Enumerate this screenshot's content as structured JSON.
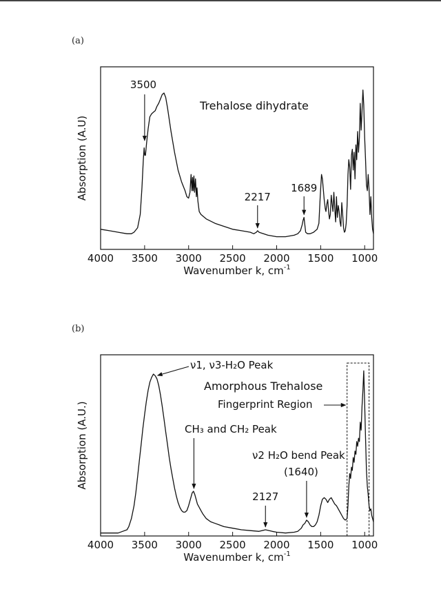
{
  "panels": [
    {
      "label": "(a)",
      "chart_data": {
        "type": "line",
        "title": "",
        "xlabel": "Wavenumber k, cm",
        "xlabel_sup": "-1",
        "ylabel": "Absorption (A.U)",
        "xlim": [
          4000,
          900
        ],
        "xreversed": true,
        "ylim": [
          0,
          1
        ],
        "xticks": [
          4000,
          3500,
          3000,
          2500,
          2000,
          1500,
          1000
        ],
        "series": [
          {
            "x": [
              4000,
              3900,
              3800,
              3700,
              3650,
              3620,
              3580,
              3550,
              3530,
              3515,
              3505,
              3498,
              3490,
              3478,
              3460,
              3440,
              3420,
              3400,
              3380,
              3360,
              3340,
              3320,
              3300,
              3280,
              3260,
              3240,
              3200,
              3160,
              3120,
              3080,
              3040,
              3020,
              3000,
              2985,
              2972,
              2962,
              2955,
              2948,
              2940,
              2932,
              2922,
              2912,
              2905,
              2895,
              2880,
              2860,
              2800,
              2700,
              2600,
              2500,
              2400,
              2300,
              2260,
              2230,
              2217,
              2200,
              2150,
              2100,
              2000,
              1900,
              1800,
              1760,
              1730,
              1710,
              1700,
              1689,
              1680,
              1670,
              1650,
              1620,
              1580,
              1540,
              1520,
              1505,
              1490,
              1480,
              1470,
              1460,
              1448,
              1440,
              1430,
              1420,
              1410,
              1400,
              1390,
              1380,
              1370,
              1360,
              1350,
              1340,
              1330,
              1320,
              1310,
              1300,
              1290,
              1280,
              1270,
              1260,
              1250,
              1240,
              1230,
              1220,
              1210,
              1200,
              1190,
              1180,
              1170,
              1160,
              1150,
              1140,
              1130,
              1120,
              1110,
              1100,
              1090,
              1080,
              1070,
              1060,
              1050,
              1040,
              1030,
              1020,
              1010,
              1000,
              990,
              980,
              970,
              960,
              950,
              940,
              930,
              920,
              910,
              900
            ],
            "y": [
              0.08,
              0.07,
              0.06,
              0.05,
              0.05,
              0.06,
              0.09,
              0.18,
              0.36,
              0.55,
              0.63,
              0.58,
              0.58,
              0.66,
              0.76,
              0.84,
              0.86,
              0.87,
              0.88,
              0.91,
              0.93,
              0.96,
              0.99,
              1.0,
              0.97,
              0.9,
              0.74,
              0.6,
              0.48,
              0.4,
              0.34,
              0.3,
              0.29,
              0.33,
              0.45,
              0.34,
              0.43,
              0.34,
              0.44,
              0.33,
              0.42,
              0.3,
              0.36,
              0.27,
              0.2,
              0.18,
              0.15,
              0.12,
              0.1,
              0.08,
              0.07,
              0.06,
              0.05,
              0.06,
              0.07,
              0.06,
              0.05,
              0.04,
              0.03,
              0.03,
              0.04,
              0.05,
              0.07,
              0.11,
              0.14,
              0.16,
              0.11,
              0.06,
              0.05,
              0.05,
              0.06,
              0.08,
              0.12,
              0.3,
              0.45,
              0.42,
              0.35,
              0.28,
              0.22,
              0.2,
              0.25,
              0.28,
              0.2,
              0.15,
              0.18,
              0.31,
              0.25,
              0.2,
              0.33,
              0.22,
              0.13,
              0.3,
              0.16,
              0.24,
              0.2,
              0.13,
              0.1,
              0.26,
              0.18,
              0.09,
              0.06,
              0.07,
              0.12,
              0.24,
              0.45,
              0.55,
              0.5,
              0.35,
              0.58,
              0.62,
              0.48,
              0.6,
              0.42,
              0.65,
              0.55,
              0.74,
              0.6,
              0.7,
              0.93,
              0.75,
              0.88,
              1.02,
              0.92,
              0.7,
              0.55,
              0.38,
              0.34,
              0.45,
              0.35,
              0.18,
              0.3,
              0.16,
              0.08,
              0.05
            ]
          }
        ],
        "annotations": [
          {
            "text": "3500",
            "x": 3500,
            "y": 0.66
          },
          {
            "text": "2217",
            "x": 2217,
            "y": 0.07
          },
          {
            "text": "1689",
            "x": 1689,
            "y": 0.16
          }
        ],
        "inner_label": "Trehalose dihydrate"
      }
    },
    {
      "label": "(b)",
      "chart_data": {
        "type": "line",
        "title": "",
        "xlabel": "Wavenumber k, cm",
        "xlabel_sup": "-1",
        "ylabel": "Absorption (A.U.)",
        "xlim": [
          4000,
          900
        ],
        "xreversed": true,
        "ylim": [
          0,
          1
        ],
        "xticks": [
          4000,
          3500,
          3000,
          2500,
          2000,
          1500,
          1000
        ],
        "series": [
          {
            "x": [
              4000,
              3900,
              3800,
              3750,
              3700,
              3680,
              3650,
              3620,
              3600,
              3580,
              3560,
              3540,
              3520,
              3500,
              3480,
              3460,
              3440,
              3420,
              3400,
              3380,
              3360,
              3340,
              3320,
              3300,
              3280,
              3260,
              3240,
              3220,
              3200,
              3180,
              3160,
              3140,
              3120,
              3100,
              3080,
              3060,
              3040,
              3020,
              3000,
              2980,
              2960,
              2945,
              2930,
              2915,
              2900,
              2880,
              2860,
              2840,
              2800,
              2750,
              2700,
              2650,
              2600,
              2500,
              2400,
              2300,
              2200,
              2127,
              2050,
              2000,
              1900,
              1800,
              1760,
              1720,
              1700,
              1680,
              1660,
              1640,
              1620,
              1600,
              1580,
              1560,
              1540,
              1520,
              1500,
              1480,
              1460,
              1440,
              1420,
              1400,
              1380,
              1360,
              1340,
              1320,
              1300,
              1280,
              1260,
              1240,
              1220,
              1200,
              1190,
              1180,
              1170,
              1160,
              1150,
              1140,
              1130,
              1120,
              1110,
              1100,
              1090,
              1080,
              1070,
              1060,
              1050,
              1040,
              1030,
              1020,
              1010,
              1000,
              990,
              980,
              970,
              960,
              950,
              940,
              930,
              920,
              910,
              900
            ],
            "y": [
              0.01,
              0.01,
              0.01,
              0.02,
              0.03,
              0.05,
              0.1,
              0.18,
              0.26,
              0.36,
              0.46,
              0.56,
              0.66,
              0.75,
              0.83,
              0.9,
              0.95,
              0.98,
              1.0,
              0.99,
              0.97,
              0.93,
              0.87,
              0.8,
              0.72,
              0.64,
              0.56,
              0.48,
              0.41,
              0.35,
              0.29,
              0.24,
              0.2,
              0.17,
              0.15,
              0.14,
              0.14,
              0.15,
              0.18,
              0.22,
              0.26,
              0.27,
              0.25,
              0.22,
              0.19,
              0.17,
              0.15,
              0.13,
              0.1,
              0.08,
              0.07,
              0.06,
              0.05,
              0.04,
              0.03,
              0.025,
              0.02,
              0.03,
              0.02,
              0.015,
              0.01,
              0.015,
              0.02,
              0.04,
              0.06,
              0.07,
              0.09,
              0.08,
              0.06,
              0.05,
              0.05,
              0.06,
              0.08,
              0.12,
              0.18,
              0.22,
              0.23,
              0.22,
              0.2,
              0.22,
              0.23,
              0.21,
              0.19,
              0.18,
              0.16,
              0.14,
              0.12,
              0.1,
              0.09,
              0.1,
              0.18,
              0.3,
              0.38,
              0.35,
              0.42,
              0.4,
              0.48,
              0.45,
              0.52,
              0.5,
              0.58,
              0.55,
              0.6,
              0.58,
              0.7,
              0.65,
              0.8,
              0.9,
              1.02,
              0.82,
              0.6,
              0.4,
              0.3,
              0.25,
              0.18,
              0.15,
              0.16,
              0.12,
              0.1,
              0.08
            ]
          }
        ],
        "annotations": [
          {
            "text": "ν1, ν3-H₂O Peak",
            "x": 3400,
            "y": 1.0
          },
          {
            "text": "CH₃ and CH₂ Peak",
            "x": 2940,
            "y": 0.27
          },
          {
            "text": "2127",
            "x": 2127,
            "y": 0.03
          },
          {
            "text": "ν2 H₂O bend Peak",
            "x": 1660,
            "y": 0.09
          },
          {
            "text": "(1640)",
            "x": 1660,
            "y": 0.09
          }
        ],
        "inner_label": "Amorphous Trehalose",
        "region_label": "Fingerprint Region",
        "region_range": [
          1200,
          950
        ]
      }
    }
  ]
}
